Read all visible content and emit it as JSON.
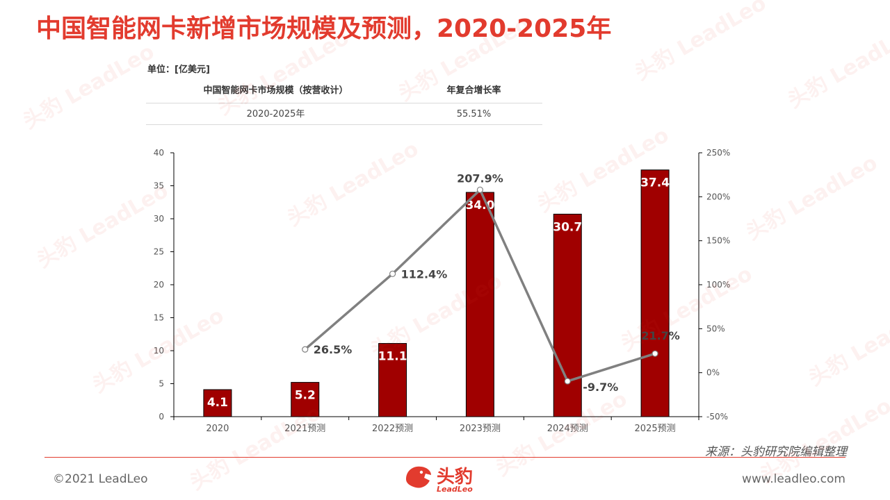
{
  "title": "中国智能网卡新增市场规模及预测，2020-2025年",
  "unit_label": "单位：[亿美元]",
  "cagr_table": {
    "headers": [
      "中国智能网卡市场规模（按营收计）",
      "年复合增长率"
    ],
    "rows": [
      [
        "2020-2025年",
        "55.51%"
      ]
    ]
  },
  "chart_data": {
    "type": "bar",
    "categories": [
      "2020",
      "2021预测",
      "2022预测",
      "2023预测",
      "2024预测",
      "2025预测"
    ],
    "series": [
      {
        "type": "bar",
        "values": [
          4.1,
          5.2,
          11.1,
          34.0,
          30.7,
          37.4
        ],
        "labels": [
          "4.1",
          "5.2",
          "11.1",
          "34.0",
          "30.7",
          "37.4"
        ],
        "color": "#a00000"
      },
      {
        "type": "line",
        "axis": "right",
        "values": [
          null,
          26.5,
          112.4,
          207.9,
          -9.7,
          21.7
        ],
        "labels": [
          "",
          "26.5%",
          "112.4%",
          "207.9%",
          "-9.7%",
          "21.7%"
        ],
        "color": "#808080"
      }
    ],
    "y_left": {
      "min": 0,
      "max": 40,
      "step": 5,
      "ticks": [
        "0",
        "5",
        "10",
        "15",
        "20",
        "25",
        "30",
        "35",
        "40"
      ]
    },
    "y_right": {
      "min": -50,
      "max": 250,
      "step": 50,
      "ticks": [
        "-50%",
        "0%",
        "50%",
        "100%",
        "150%",
        "200%",
        "250%"
      ]
    }
  },
  "source": "来源：头豹研究院编辑整理",
  "footer": {
    "copyright": "©2021 LeadLeo",
    "website": "www.leadleo.com"
  },
  "logo": {
    "name": "头豹",
    "sub": "LeadLeo"
  },
  "watermark": {
    "name": "头豹",
    "sub": "LeadLeo"
  }
}
